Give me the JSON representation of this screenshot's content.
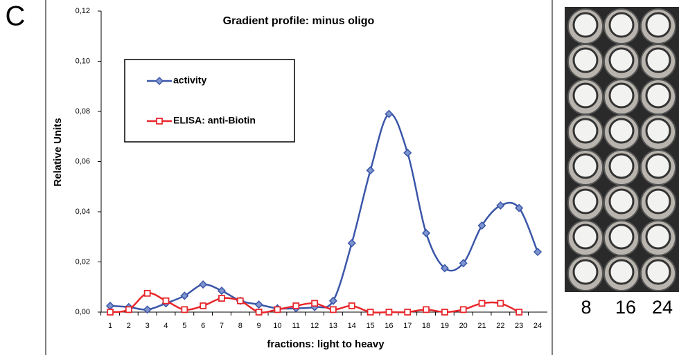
{
  "panel_label": "C",
  "chart_data": {
    "type": "line",
    "title": "Gradient profile: minus oligo",
    "x_label": "fractions: light to heavy",
    "y_label": "Relative Units",
    "categories": [
      "1",
      "2",
      "3",
      "4",
      "5",
      "6",
      "7",
      "8",
      "9",
      "10",
      "11",
      "12",
      "13",
      "14",
      "15",
      "16",
      "17",
      "18",
      "19",
      "20",
      "21",
      "22",
      "23",
      "24"
    ],
    "series": [
      {
        "name": "activity",
        "color": "#3a56a8",
        "marker": "diamond",
        "values": [
          0.0025,
          0.002,
          0.001,
          0.0035,
          0.0065,
          0.011,
          0.0085,
          0.0045,
          0.003,
          0.0015,
          0.0015,
          0.002,
          0.0045,
          0.0275,
          0.0565,
          0.079,
          0.0635,
          0.0315,
          0.0175,
          0.0195,
          0.0345,
          0.0425,
          0.0415,
          0.024
        ]
      },
      {
        "name": "ELISA: anti-Biotin",
        "color": "#e8262b",
        "marker": "square",
        "values": [
          0,
          0.001,
          0.0075,
          0.0045,
          0.001,
          0.0025,
          0.0055,
          0.0045,
          0,
          0.001,
          0.0025,
          0.0035,
          0.001,
          0.0025,
          0,
          0,
          0,
          0.001,
          0,
          0.001,
          0.0035,
          0.0035,
          0,
          null
        ]
      }
    ],
    "ylim": [
      0,
      0.12
    ],
    "yticks": [
      {
        "value": 0,
        "label": "0,00"
      },
      {
        "value": 0.02,
        "label": "0,02"
      },
      {
        "value": 0.04,
        "label": "0,04"
      },
      {
        "value": 0.06,
        "label": "0,06"
      },
      {
        "value": 0.08,
        "label": "0,08"
      },
      {
        "value": 0.1,
        "label": "0,10"
      },
      {
        "value": 0.12,
        "label": "0,12"
      }
    ],
    "smooth": true,
    "legend": "upper left"
  },
  "photo_labels": [
    "8",
    "16",
    "24"
  ]
}
